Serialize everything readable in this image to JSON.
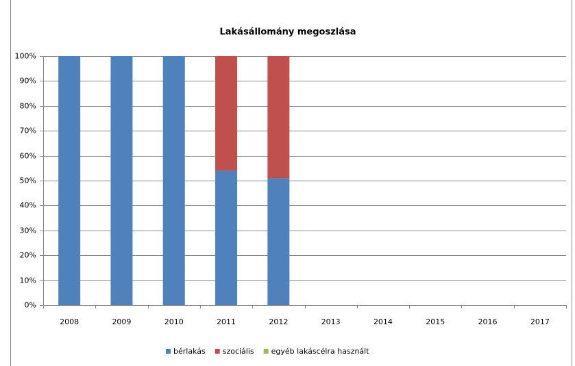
{
  "chart_data": {
    "type": "stacked_bar",
    "title": "Lakásállomány megoszlása",
    "categories": [
      "2008",
      "2009",
      "2010",
      "2011",
      "2012",
      "2013",
      "2014",
      "2015",
      "2016",
      "2017"
    ],
    "series": [
      {
        "name": "bérlakás",
        "color": "#4f81bd",
        "values": [
          100,
          100,
          100,
          54,
          51,
          null,
          null,
          null,
          null,
          null
        ]
      },
      {
        "name": "szociális",
        "color": "#c0504d",
        "values": [
          0,
          0,
          0,
          46,
          49,
          null,
          null,
          null,
          null,
          null
        ]
      },
      {
        "name": "egyéb lakáscélra használt",
        "color": "#9bbb59",
        "values": [
          0,
          0,
          0,
          0,
          0,
          null,
          null,
          null,
          null,
          null
        ]
      }
    ],
    "ylim": [
      0,
      100
    ],
    "yticks": [
      {
        "value": 0,
        "label": "0%"
      },
      {
        "value": 10,
        "label": "10%"
      },
      {
        "value": 20,
        "label": "20%"
      },
      {
        "value": 30,
        "label": "30%"
      },
      {
        "value": 40,
        "label": "40%"
      },
      {
        "value": 50,
        "label": "50%"
      },
      {
        "value": 60,
        "label": "60%"
      },
      {
        "value": 70,
        "label": "70%"
      },
      {
        "value": 80,
        "label": "80%"
      },
      {
        "value": 90,
        "label": "90%"
      },
      {
        "value": 100,
        "label": "100%"
      }
    ],
    "grid": true,
    "legend": "bottom"
  }
}
